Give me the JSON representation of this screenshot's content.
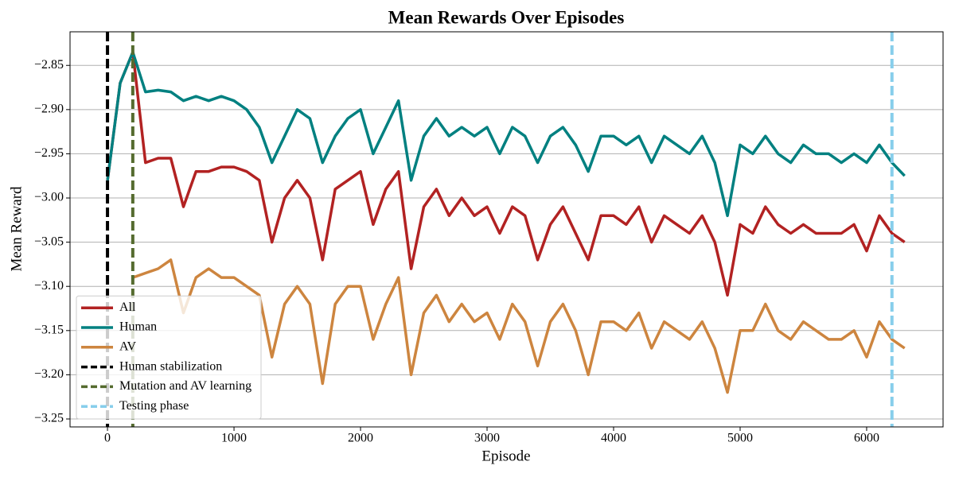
{
  "chart_data": {
    "type": "line",
    "title": "Mean Rewards Over Episodes",
    "x_label": "Episode",
    "y_label": "Mean Reward",
    "x": [
      0,
      100,
      200,
      300,
      400,
      500,
      600,
      700,
      800,
      900,
      1000,
      1100,
      1200,
      1300,
      1400,
      1500,
      1600,
      1700,
      1800,
      1900,
      2000,
      2100,
      2200,
      2300,
      2400,
      2500,
      2600,
      2700,
      2800,
      2900,
      3000,
      3100,
      3200,
      3300,
      3400,
      3500,
      3600,
      3700,
      3800,
      3900,
      4000,
      4100,
      4200,
      4300,
      4400,
      4500,
      4600,
      4700,
      4800,
      4900,
      5000,
      5100,
      5200,
      5300,
      5400,
      5500,
      5600,
      5700,
      5800,
      5900,
      6000,
      6100,
      6200,
      6300
    ],
    "series": [
      {
        "name": "All",
        "color": "#b22222",
        "values": [
          -2.98,
          -2.87,
          -2.835,
          -2.96,
          -2.955,
          -2.955,
          -3.01,
          -2.97,
          -2.97,
          -2.965,
          -2.965,
          -2.97,
          -2.98,
          -3.05,
          -3.0,
          -2.98,
          -3.0,
          -3.07,
          -2.99,
          -2.98,
          -2.97,
          -3.03,
          -2.99,
          -2.97,
          -3.08,
          -3.01,
          -2.99,
          -3.02,
          -3.0,
          -3.02,
          -3.01,
          -3.04,
          -3.01,
          -3.02,
          -3.07,
          -3.03,
          -3.01,
          -3.04,
          -3.07,
          -3.02,
          -3.02,
          -3.03,
          -3.01,
          -3.05,
          -3.02,
          -3.03,
          -3.04,
          -3.02,
          -3.05,
          -3.11,
          -3.03,
          -3.04,
          -3.01,
          -3.03,
          -3.04,
          -3.03,
          -3.04,
          -3.04,
          -3.04,
          -3.03,
          -3.06,
          -3.02,
          -3.04,
          -3.05
        ]
      },
      {
        "name": "Human",
        "color": "#008080",
        "values": [
          -2.98,
          -2.87,
          -2.835,
          -2.88,
          -2.878,
          -2.88,
          -2.89,
          -2.885,
          -2.89,
          -2.885,
          -2.89,
          -2.9,
          -2.92,
          -2.96,
          -2.93,
          -2.9,
          -2.91,
          -2.96,
          -2.93,
          -2.91,
          -2.9,
          -2.95,
          -2.92,
          -2.89,
          -2.98,
          -2.93,
          -2.91,
          -2.93,
          -2.92,
          -2.93,
          -2.92,
          -2.95,
          -2.92,
          -2.93,
          -2.96,
          -2.93,
          -2.92,
          -2.94,
          -2.97,
          -2.93,
          -2.93,
          -2.94,
          -2.93,
          -2.96,
          -2.93,
          -2.94,
          -2.95,
          -2.93,
          -2.96,
          -3.02,
          -2.94,
          -2.95,
          -2.93,
          -2.95,
          -2.96,
          -2.94,
          -2.95,
          -2.95,
          -2.96,
          -2.95,
          -2.96,
          -2.94,
          -2.96,
          -2.975
        ]
      },
      {
        "name": "AV",
        "color": "#cd853f",
        "values": [
          null,
          null,
          -3.09,
          -3.085,
          -3.08,
          -3.07,
          -3.13,
          -3.09,
          -3.08,
          -3.09,
          -3.09,
          -3.1,
          -3.11,
          -3.18,
          -3.12,
          -3.1,
          -3.12,
          -3.21,
          -3.12,
          -3.1,
          -3.1,
          -3.16,
          -3.12,
          -3.09,
          -3.2,
          -3.13,
          -3.11,
          -3.14,
          -3.12,
          -3.14,
          -3.13,
          -3.16,
          -3.12,
          -3.14,
          -3.19,
          -3.14,
          -3.12,
          -3.15,
          -3.2,
          -3.14,
          -3.14,
          -3.15,
          -3.13,
          -3.17,
          -3.14,
          -3.15,
          -3.16,
          -3.14,
          -3.17,
          -3.22,
          -3.15,
          -3.15,
          -3.12,
          -3.15,
          -3.16,
          -3.14,
          -3.15,
          -3.16,
          -3.16,
          -3.15,
          -3.18,
          -3.14,
          -3.16,
          -3.17
        ]
      }
    ],
    "vlines": [
      {
        "name": "Human stabilization",
        "color": "#000000",
        "x": 0
      },
      {
        "name": "Mutation and AV learning",
        "color": "#556b2f",
        "x": 200
      },
      {
        "name": "Testing phase",
        "color": "#87ceeb",
        "x": 6200
      }
    ],
    "xlim": [
      -296,
      6604
    ],
    "ylim": [
      -3.259,
      -2.812
    ],
    "xticks": [
      0,
      1000,
      2000,
      3000,
      4000,
      5000,
      6000
    ],
    "yticks": [
      {
        "value": -2.85,
        "label": "−2.85"
      },
      {
        "value": -2.9,
        "label": "−2.90"
      },
      {
        "value": -2.95,
        "label": "−2.95"
      },
      {
        "value": -3.0,
        "label": "−3.00"
      },
      {
        "value": -3.05,
        "label": "−3.05"
      },
      {
        "value": -3.1,
        "label": "−3.10"
      },
      {
        "value": -3.15,
        "label": "−3.15"
      },
      {
        "value": -3.2,
        "label": "−3.20"
      },
      {
        "value": -3.25,
        "label": "−3.25"
      }
    ],
    "grid": "y",
    "legend": "lower left"
  }
}
